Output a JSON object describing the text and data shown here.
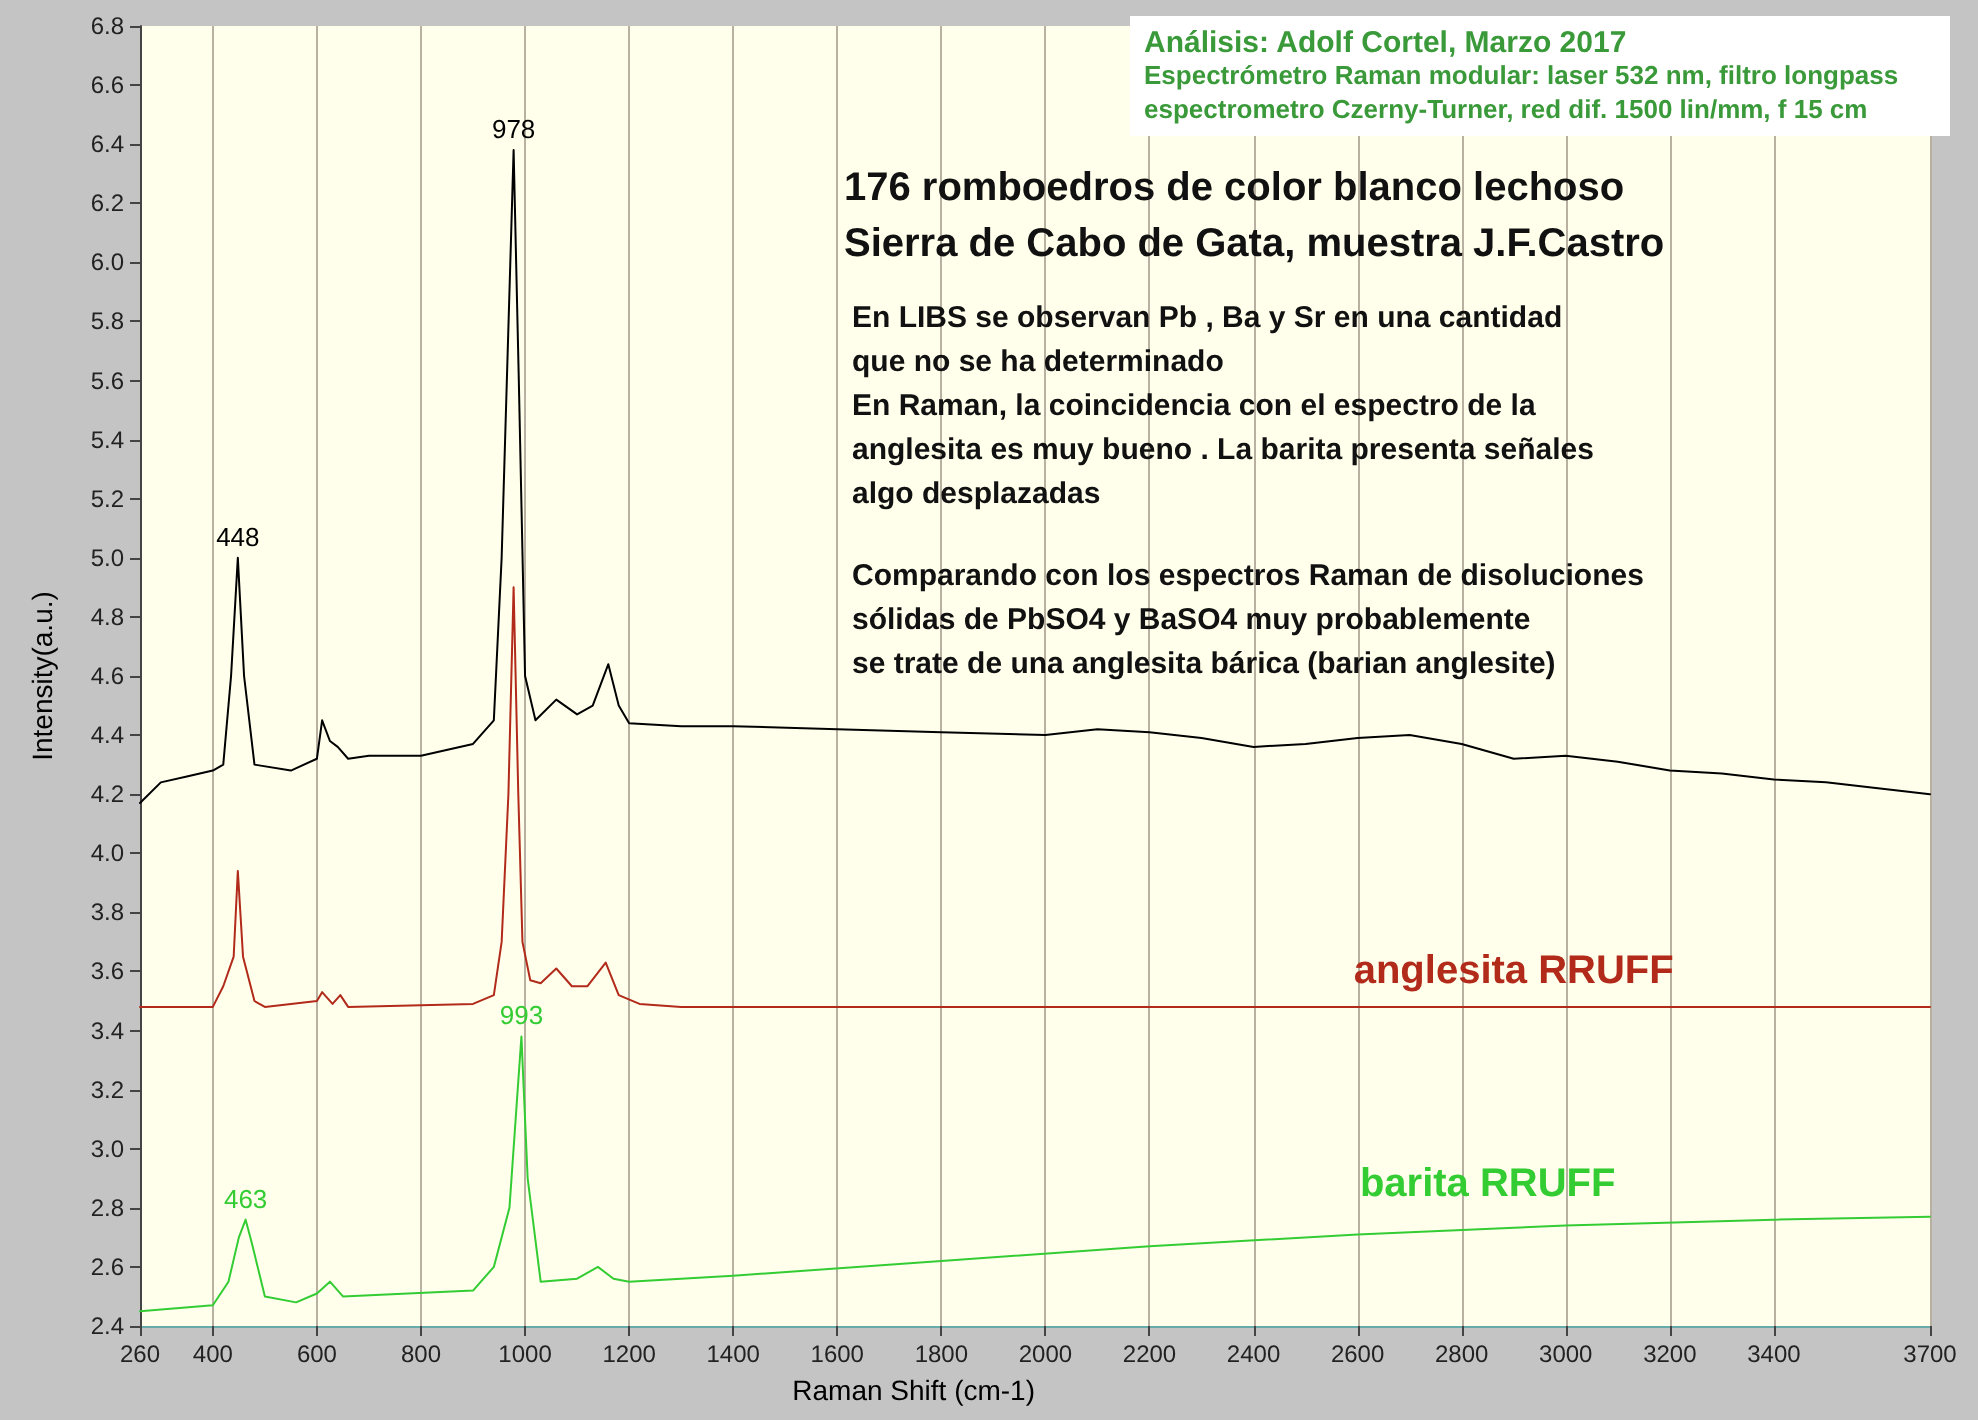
{
  "chart_data": {
    "type": "line",
    "title": "176 romboedros de color blanco lechoso",
    "subtitle": "Sierra de Cabo de Gata, muestra J.F.Castro",
    "xlabel": "Raman Shift (cm-1)",
    "ylabel": "Intensity(a.u.)",
    "annotations": [
      "Análisis: Adolf Cortel, Marzo 2017",
      "Espectrómetro Raman modular: laser 532 nm, filtro longpass",
      "espectrometro Czerny-Turner, red dif. 1500 lin/mm, f 15 cm",
      "En LIBS se observan Pb , Ba y Sr en una cantidad\nque no se ha determinado\nEn Raman, la coincidencia con el espectro de la\nanglesita es muy bueno . La barita presenta señales\nalgo desplazadas",
      "Comparando con los espectros Raman de disoluciones\nsólidas de PbSO4 y BaSO4 muy probablemente\nse trate de una anglesita bárica (barian anglesite)",
      {
        "text": "978",
        "x": 978,
        "y": 6.38
      },
      {
        "text": "448",
        "x": 448,
        "y": 5.0
      },
      {
        "text": "463",
        "x": 463,
        "y": 2.76
      },
      {
        "text": "993",
        "x": 993,
        "y": 3.38
      }
    ],
    "series": [
      {
        "color": "#000000",
        "x": [
          260,
          300,
          350,
          400,
          420,
          435,
          448,
          460,
          480,
          550,
          600,
          610,
          625,
          640,
          660,
          700,
          800,
          900,
          940,
          955,
          965,
          978,
          988,
          1000,
          1020,
          1060,
          1100,
          1130,
          1160,
          1180,
          1200,
          1300,
          1400,
          1600,
          1800,
          2000,
          2100,
          2200,
          2300,
          2400,
          2500,
          2600,
          2700,
          2800,
          2900,
          3000,
          3100,
          3200,
          3300,
          3400,
          3500,
          3600,
          3700
        ],
        "values": [
          4.17,
          4.24,
          4.26,
          4.28,
          4.3,
          4.6,
          5.0,
          4.6,
          4.3,
          4.28,
          4.32,
          4.45,
          4.38,
          4.36,
          4.32,
          4.33,
          4.33,
          4.37,
          4.45,
          5.0,
          5.6,
          6.38,
          5.6,
          4.6,
          4.45,
          4.52,
          4.47,
          4.5,
          4.64,
          4.5,
          4.44,
          4.43,
          4.43,
          4.42,
          4.41,
          4.4,
          4.42,
          4.41,
          4.39,
          4.36,
          4.37,
          4.39,
          4.4,
          4.37,
          4.32,
          4.33,
          4.31,
          4.28,
          4.27,
          4.25,
          4.24,
          4.22,
          4.2
        ]
      },
      {
        "name": "anglesita RRUFF",
        "color": "#b22a1a",
        "x": [
          260,
          400,
          420,
          440,
          448,
          458,
          480,
          500,
          600,
          610,
          630,
          645,
          660,
          900,
          940,
          955,
          968,
          978,
          987,
          995,
          1010,
          1030,
          1060,
          1090,
          1120,
          1155,
          1180,
          1220,
          1300,
          3700
        ],
        "values": [
          3.48,
          3.48,
          3.55,
          3.65,
          3.94,
          3.65,
          3.5,
          3.48,
          3.5,
          3.53,
          3.49,
          3.52,
          3.48,
          3.49,
          3.52,
          3.7,
          4.2,
          4.9,
          4.2,
          3.7,
          3.57,
          3.56,
          3.61,
          3.55,
          3.55,
          3.63,
          3.52,
          3.49,
          3.48,
          3.48
        ]
      },
      {
        "name": "barita RRUFF",
        "color": "#33cc33",
        "x": [
          260,
          400,
          430,
          450,
          463,
          475,
          500,
          560,
          600,
          625,
          650,
          900,
          940,
          970,
          993,
          1005,
          1030,
          1100,
          1140,
          1170,
          1200,
          1400,
          1800,
          2200,
          2600,
          3000,
          3400,
          3700
        ],
        "values": [
          2.45,
          2.47,
          2.55,
          2.7,
          2.76,
          2.68,
          2.5,
          2.48,
          2.51,
          2.55,
          2.5,
          2.52,
          2.6,
          2.8,
          3.38,
          2.9,
          2.55,
          2.56,
          2.6,
          2.56,
          2.55,
          2.57,
          2.62,
          2.67,
          2.71,
          2.74,
          2.76,
          2.77
        ]
      }
    ],
    "xlim": [
      260,
      3700
    ],
    "xticks": [
      260,
      400,
      600,
      800,
      1000,
      1200,
      1400,
      1600,
      1800,
      2000,
      2200,
      2400,
      2600,
      2800,
      3000,
      3200,
      3400,
      3700
    ],
    "ylim": [
      2.4,
      6.8
    ],
    "yticks": [
      2.4,
      2.6,
      2.8,
      {
        "value": 3,
        "label": "3.0"
      },
      3.2,
      3.4,
      3.6,
      3.8,
      {
        "value": 4,
        "label": "4.0"
      },
      4.2,
      4.4,
      4.6,
      4.8,
      {
        "value": 5,
        "label": "5.0"
      },
      5.2,
      5.4,
      5.6,
      5.8,
      {
        "value": 6,
        "label": "6.0"
      },
      6.2,
      6.4,
      6.6,
      6.8
    ],
    "grid": "x",
    "marker": "none",
    "line_style": "solid"
  }
}
